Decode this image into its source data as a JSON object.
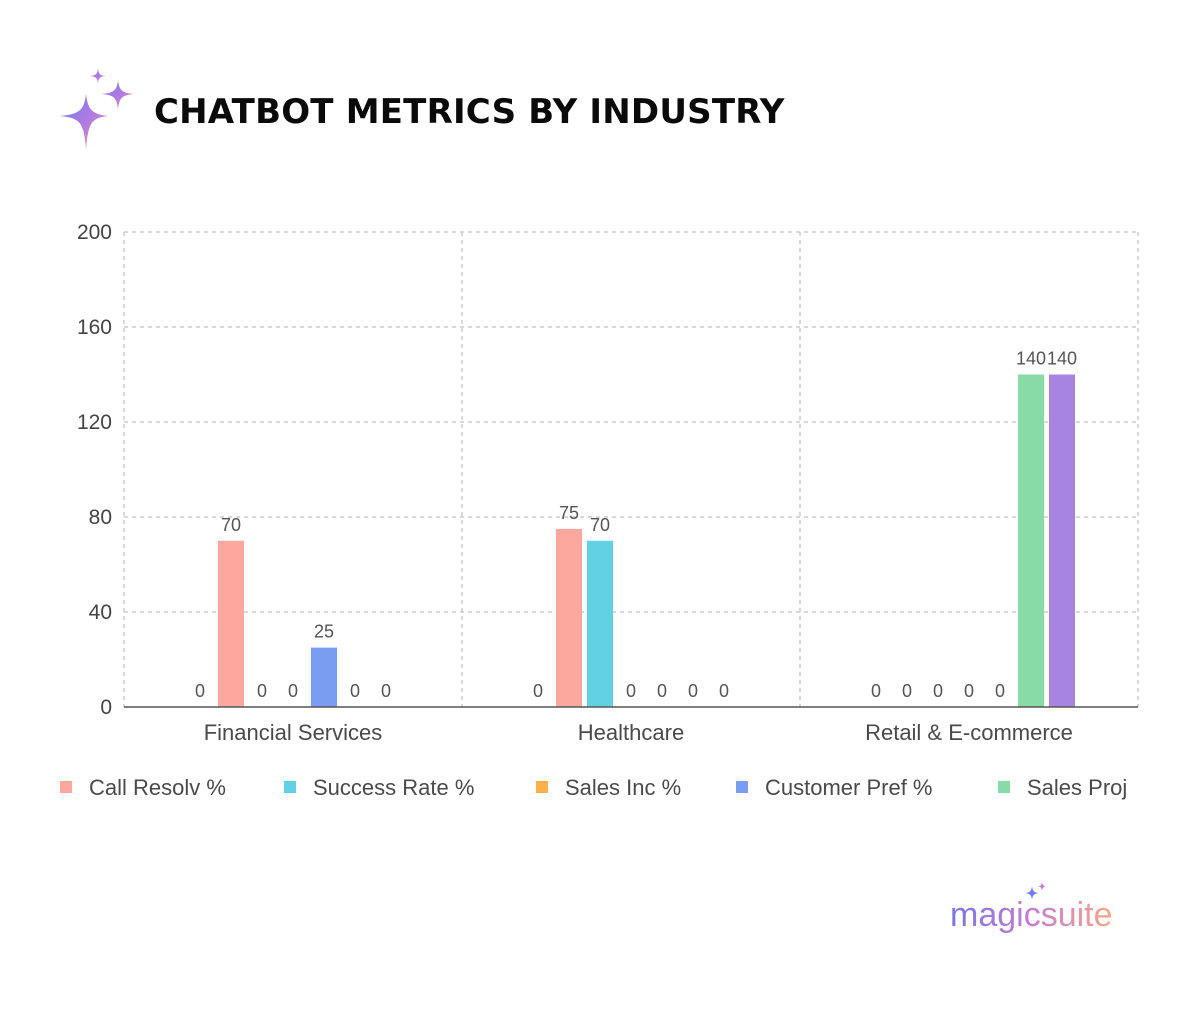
{
  "header": {
    "title": "CHATBOT METRICS BY INDUSTRY",
    "icon": "sparkle-icon"
  },
  "brand": {
    "name": "magicsuite",
    "icon": "sparkle-icon"
  },
  "colors": {
    "call_resolv": "#fda89f",
    "success_rate": "#62d1e3",
    "sales_inc": "#fbb04a",
    "customer_pref": "#7a9cf1",
    "sales_proj": "#88dba7",
    "purple": "#a783e2",
    "grid": "#cccccc",
    "axis": "#555555"
  },
  "chart_data": {
    "type": "bar",
    "title": "CHATBOT METRICS BY INDUSTRY",
    "categories": [
      "Financial Services",
      "Healthcare",
      "Retail & E-commerce"
    ],
    "series": [
      {
        "name": "Call Resolv %",
        "values": [
          70,
          75,
          0
        ]
      },
      {
        "name": "Success Rate %",
        "values": [
          0,
          70,
          0
        ]
      },
      {
        "name": "Sales Inc %",
        "values": [
          0,
          0,
          0
        ]
      },
      {
        "name": "Customer Pref %",
        "values": [
          25,
          0,
          0
        ]
      },
      {
        "name": "Sales Proj",
        "values": [
          0,
          0,
          140
        ]
      },
      {
        "name": "",
        "values": [
          0,
          0,
          140
        ]
      }
    ],
    "zero_label_slots": [
      [
        "0",
        null,
        "0",
        "0",
        null,
        "0",
        "0"
      ],
      [
        "0",
        null,
        null,
        "0",
        "0",
        "0",
        "0"
      ],
      [
        "0",
        "0",
        "0",
        "0",
        "0",
        null,
        null
      ]
    ],
    "bar_slots": [
      1,
      2,
      3,
      4,
      5,
      6
    ],
    "ylim": [
      0,
      200
    ],
    "yticks": [
      0,
      40,
      80,
      120,
      160,
      200
    ],
    "xlabel": "",
    "ylabel": "",
    "grid": true,
    "legend_position": "bottom",
    "legend_visible": [
      "Call Resolv %",
      "Success Rate %",
      "Sales Inc %",
      "Customer Pref %",
      "Sales Proj"
    ]
  }
}
